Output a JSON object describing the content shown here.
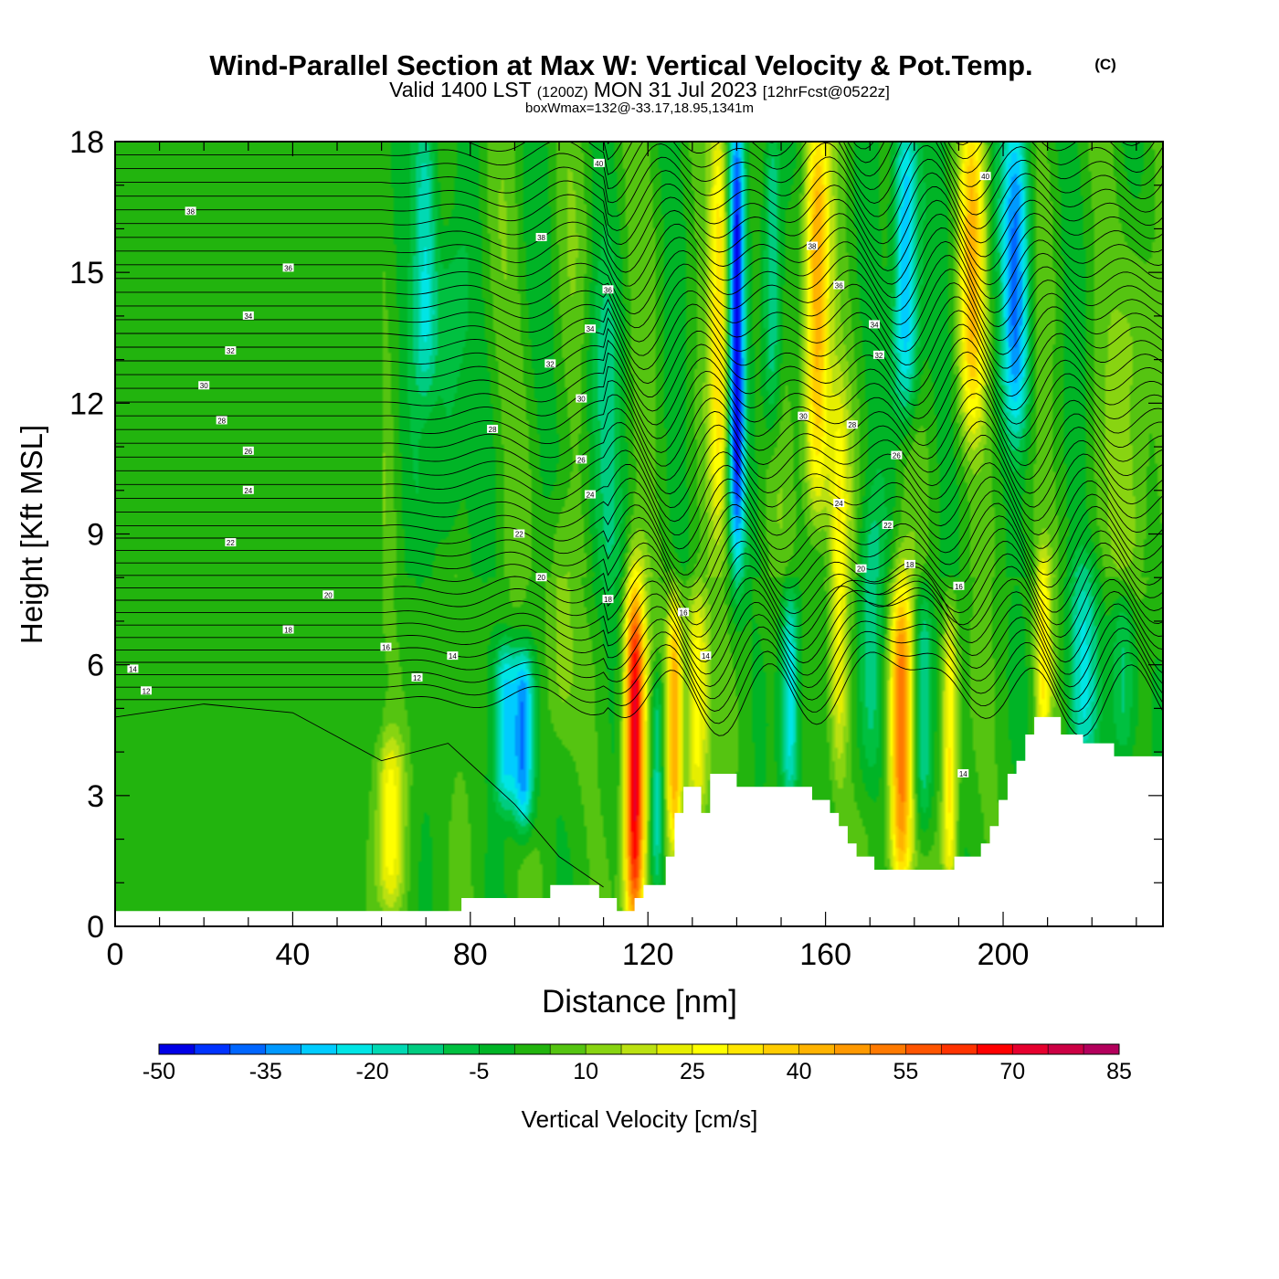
{
  "header": {
    "title": "Wind-Parallel Section at Max W: Vertical Velocity & Pot.Temp.",
    "copyright": "(C)",
    "valid_prefix": "Valid 1400 LST",
    "valid_utc": "(1200Z)",
    "valid_date": "MON 31 Jul 2023",
    "forecast": "[12hrFcst@0522z]",
    "box_wmax": "boxWmax=132@-33.17,18.95,1341m"
  },
  "chart_data": {
    "type": "heatmap",
    "xlabel": "Distance [nm]",
    "ylabel": "Height [Kft MSL]",
    "xlim": [
      0,
      236
    ],
    "ylim": [
      0,
      18
    ],
    "x_ticks": [
      "0",
      "40",
      "80",
      "120",
      "160",
      "200"
    ],
    "x_tick_values": [
      0,
      40,
      80,
      120,
      160,
      200
    ],
    "y_ticks": [
      "0",
      "3",
      "6",
      "9",
      "12",
      "15",
      "18"
    ],
    "y_tick_values": [
      0,
      3,
      6,
      9,
      12,
      15,
      18
    ],
    "colorbar": {
      "label": "Vertical Velocity [cm/s]",
      "tick_labels": [
        "-50",
        "-35",
        "-20",
        "-5",
        "10",
        "25",
        "40",
        "55",
        "70",
        "85"
      ],
      "levels": [
        -50,
        -45,
        -40,
        -35,
        -30,
        -25,
        -20,
        -15,
        -10,
        -5,
        0,
        5,
        10,
        15,
        20,
        25,
        30,
        35,
        40,
        45,
        50,
        55,
        60,
        65,
        70,
        75,
        80,
        85
      ],
      "colors": [
        "#0000e6",
        "#0033ff",
        "#0066ff",
        "#0099ff",
        "#00ccff",
        "#00e5e5",
        "#00d9b3",
        "#00cc80",
        "#00c040",
        "#00b426",
        "#22b40e",
        "#55c411",
        "#88d411",
        "#bbe111",
        "#e6ee00",
        "#ffff00",
        "#ffe600",
        "#ffcc00",
        "#ffb300",
        "#ff9900",
        "#ff7a00",
        "#ff5500",
        "#ff3300",
        "#ff0000",
        "#e6002e",
        "#cc0044",
        "#b3005c"
      ]
    },
    "terrain": [
      [
        0,
        0.35
      ],
      [
        78,
        0.35
      ],
      [
        78,
        0.65
      ],
      [
        98,
        0.65
      ],
      [
        98,
        0.95
      ],
      [
        109,
        0.95
      ],
      [
        109,
        0.65
      ],
      [
        113,
        0.65
      ],
      [
        113,
        0.35
      ],
      [
        117,
        0.35
      ],
      [
        117,
        0.65
      ],
      [
        119,
        0.65
      ],
      [
        119,
        0.95
      ],
      [
        124,
        0.95
      ],
      [
        124,
        1.6
      ],
      [
        126,
        1.6
      ],
      [
        126,
        2.6
      ],
      [
        128,
        2.6
      ],
      [
        128,
        3.2
      ],
      [
        132,
        3.2
      ],
      [
        132,
        2.6
      ],
      [
        134,
        2.6
      ],
      [
        134,
        3.5
      ],
      [
        140,
        3.5
      ],
      [
        140,
        3.2
      ],
      [
        157,
        3.2
      ],
      [
        157,
        2.9
      ],
      [
        161,
        2.9
      ],
      [
        161,
        2.6
      ],
      [
        163,
        2.6
      ],
      [
        163,
        2.3
      ],
      [
        165,
        2.3
      ],
      [
        165,
        1.9
      ],
      [
        167,
        1.9
      ],
      [
        167,
        1.6
      ],
      [
        171,
        1.6
      ],
      [
        171,
        1.3
      ],
      [
        189,
        1.3
      ],
      [
        189,
        1.6
      ],
      [
        195,
        1.6
      ],
      [
        195,
        1.9
      ],
      [
        197,
        1.9
      ],
      [
        197,
        2.3
      ],
      [
        199,
        2.3
      ],
      [
        199,
        2.9
      ],
      [
        201,
        2.9
      ],
      [
        201,
        3.5
      ],
      [
        203,
        3.5
      ],
      [
        203,
        3.8
      ],
      [
        205,
        3.8
      ],
      [
        205,
        4.4
      ],
      [
        207,
        4.4
      ],
      [
        207,
        4.8
      ],
      [
        213,
        4.8
      ],
      [
        213,
        4.4
      ],
      [
        218,
        4.4
      ],
      [
        218,
        4.2
      ],
      [
        225,
        4.2
      ],
      [
        225,
        3.9
      ],
      [
        236,
        3.9
      ]
    ],
    "theta_labels": [
      {
        "x": 17,
        "y": 16.4,
        "text": "38"
      },
      {
        "x": 109,
        "y": 17.5,
        "text": "40"
      },
      {
        "x": 196,
        "y": 17.2,
        "text": "40"
      },
      {
        "x": 39,
        "y": 15.1,
        "text": "36"
      },
      {
        "x": 96,
        "y": 15.8,
        "text": "38"
      },
      {
        "x": 157,
        "y": 15.6,
        "text": "38"
      },
      {
        "x": 30,
        "y": 14.0,
        "text": "34"
      },
      {
        "x": 111,
        "y": 14.6,
        "text": "36"
      },
      {
        "x": 163,
        "y": 14.7,
        "text": "36"
      },
      {
        "x": 26,
        "y": 13.2,
        "text": "32"
      },
      {
        "x": 107,
        "y": 13.7,
        "text": "34"
      },
      {
        "x": 171,
        "y": 13.8,
        "text": "34"
      },
      {
        "x": 20,
        "y": 12.4,
        "text": "30"
      },
      {
        "x": 98,
        "y": 12.9,
        "text": "32"
      },
      {
        "x": 172,
        "y": 13.1,
        "text": "32"
      },
      {
        "x": 24,
        "y": 11.6,
        "text": "28"
      },
      {
        "x": 105,
        "y": 12.1,
        "text": "30"
      },
      {
        "x": 155,
        "y": 11.7,
        "text": "30"
      },
      {
        "x": 30,
        "y": 10.9,
        "text": "26"
      },
      {
        "x": 85,
        "y": 11.4,
        "text": "28"
      },
      {
        "x": 166,
        "y": 11.5,
        "text": "28"
      },
      {
        "x": 30,
        "y": 10.0,
        "text": "24"
      },
      {
        "x": 105,
        "y": 10.7,
        "text": "26"
      },
      {
        "x": 176,
        "y": 10.8,
        "text": "26"
      },
      {
        "x": 26,
        "y": 8.8,
        "text": "22"
      },
      {
        "x": 107,
        "y": 9.9,
        "text": "24"
      },
      {
        "x": 163,
        "y": 9.7,
        "text": "24"
      },
      {
        "x": 48,
        "y": 7.6,
        "text": "20"
      },
      {
        "x": 91,
        "y": 9.0,
        "text": "22"
      },
      {
        "x": 174,
        "y": 9.2,
        "text": "22"
      },
      {
        "x": 39,
        "y": 6.8,
        "text": "18"
      },
      {
        "x": 96,
        "y": 8.0,
        "text": "20"
      },
      {
        "x": 168,
        "y": 8.2,
        "text": "20"
      },
      {
        "x": 61,
        "y": 6.4,
        "text": "16"
      },
      {
        "x": 111,
        "y": 7.5,
        "text": "18"
      },
      {
        "x": 179,
        "y": 8.3,
        "text": "18"
      },
      {
        "x": 4,
        "y": 5.9,
        "text": "14"
      },
      {
        "x": 76,
        "y": 6.2,
        "text": "14"
      },
      {
        "x": 128,
        "y": 7.2,
        "text": "16"
      },
      {
        "x": 190,
        "y": 7.8,
        "text": "16"
      },
      {
        "x": 7,
        "y": 5.4,
        "text": "12"
      },
      {
        "x": 68,
        "y": 5.7,
        "text": "12"
      },
      {
        "x": 133,
        "y": 6.2,
        "text": "14"
      },
      {
        "x": 191,
        "y": 3.5,
        "text": "14"
      }
    ],
    "w_features": [
      {
        "x": 117,
        "y0": 0.4,
        "y1": 7.2,
        "sx": 1.6,
        "amp": 70
      },
      {
        "x": 126,
        "y0": 2.5,
        "y1": 6.8,
        "sx": 1.2,
        "amp": 42
      },
      {
        "x": 131,
        "y0": 3.2,
        "y1": 7.0,
        "sx": 1.8,
        "amp": 28
      },
      {
        "x": 136,
        "y0": 10.0,
        "y1": 18.0,
        "sx": 1.4,
        "amp": 28
      },
      {
        "x": 140,
        "y0": 9.0,
        "y1": 18.0,
        "sx": 1.2,
        "amp": -48
      },
      {
        "x": 158,
        "y0": 10.0,
        "y1": 18.0,
        "sx": 2.0,
        "amp": 42
      },
      {
        "x": 163,
        "y0": 4.0,
        "y1": 11.5,
        "sx": 1.5,
        "amp": 22
      },
      {
        "x": 177,
        "y0": 1.4,
        "y1": 7.2,
        "sx": 1.8,
        "amp": 50
      },
      {
        "x": 188,
        "y0": 1.4,
        "y1": 6.5,
        "sx": 1.2,
        "amp": 30
      },
      {
        "x": 178,
        "y0": 12.5,
        "y1": 18.0,
        "sx": 2.0,
        "amp": -38
      },
      {
        "x": 193,
        "y0": 12.0,
        "y1": 18.0,
        "sx": 2.0,
        "amp": 32
      },
      {
        "x": 203,
        "y0": 12.0,
        "y1": 18.0,
        "sx": 2.2,
        "amp": -35
      },
      {
        "x": 209,
        "y0": 5.0,
        "y1": 7.8,
        "sx": 1.2,
        "amp": 26
      },
      {
        "x": 92,
        "y0": 3.0,
        "y1": 5.6,
        "sx": 1.6,
        "amp": -38
      },
      {
        "x": 88,
        "y0": 3.5,
        "y1": 5.8,
        "sx": 1.8,
        "amp": -30
      },
      {
        "x": 62,
        "y0": 1.2,
        "y1": 3.6,
        "sx": 2.2,
        "amp": 22
      },
      {
        "x": 70,
        "y0": 13.0,
        "y1": 18.0,
        "sx": 2.0,
        "amp": -25
      },
      {
        "x": 75,
        "y0": 9.0,
        "y1": 15.0,
        "sx": 2.5,
        "amp": -15
      },
      {
        "x": 152,
        "y0": 3.5,
        "y1": 7.0,
        "sx": 1.5,
        "amp": -28
      },
      {
        "x": 148,
        "y0": 12.0,
        "y1": 18.0,
        "sx": 1.5,
        "amp": -22
      },
      {
        "x": 218,
        "y0": 4.5,
        "y1": 7.5,
        "sx": 2.5,
        "amp": -20
      },
      {
        "x": 227,
        "y0": 4.5,
        "y1": 7.0,
        "sx": 2.0,
        "amp": -18
      },
      {
        "x": 122,
        "y0": 1.5,
        "y1": 5.0,
        "sx": 1.0,
        "amp": -22
      },
      {
        "x": 110,
        "y0": 8.0,
        "y1": 14.0,
        "sx": 3.0,
        "amp": -12
      },
      {
        "x": 100,
        "y0": 5.0,
        "y1": 9.0,
        "sx": 2.5,
        "amp": 10
      },
      {
        "x": 182,
        "y0": 3.0,
        "y1": 7.0,
        "sx": 1.4,
        "amp": -20
      },
      {
        "x": 170,
        "y0": 4.0,
        "y1": 9.0,
        "sx": 2.0,
        "amp": -15
      },
      {
        "x": 230,
        "y0": 8.0,
        "y1": 15.0,
        "sx": 3.0,
        "amp": 12
      }
    ]
  }
}
